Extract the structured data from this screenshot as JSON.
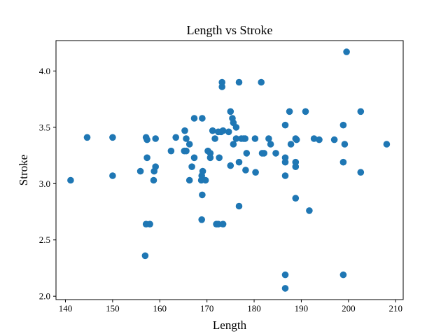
{
  "chart_data": {
    "type": "scatter",
    "title": "Length vs Stroke",
    "xlabel": "Length",
    "ylabel": "Stroke",
    "xlim": [
      138.0,
      211.6
    ],
    "ylim": [
      1.97,
      4.27
    ],
    "xticks": [
      140,
      150,
      160,
      170,
      180,
      190,
      200,
      210
    ],
    "yticks": [
      2.0,
      2.5,
      3.0,
      3.5,
      4.0
    ],
    "xtick_labels": [
      "140",
      "150",
      "160",
      "170",
      "180",
      "190",
      "200",
      "210"
    ],
    "ytick_labels": [
      "2.0",
      "2.5",
      "3.0",
      "3.5",
      "4.0"
    ],
    "grid": false,
    "marker_color": "#1f77b4",
    "series": [
      {
        "points": [
          [
            141.1,
            3.03
          ],
          [
            144.6,
            3.41
          ],
          [
            150.0,
            3.41
          ],
          [
            150.0,
            3.07
          ],
          [
            155.9,
            3.11
          ],
          [
            157.1,
            3.41
          ],
          [
            157.3,
            3.39
          ],
          [
            157.3,
            3.23
          ],
          [
            157.1,
            2.64
          ],
          [
            157.9,
            2.64
          ],
          [
            156.9,
            2.36
          ],
          [
            158.7,
            3.03
          ],
          [
            158.8,
            3.11
          ],
          [
            159.1,
            3.15
          ],
          [
            159.1,
            3.4
          ],
          [
            162.4,
            3.29
          ],
          [
            163.4,
            3.41
          ],
          [
            165.3,
            3.47
          ],
          [
            165.2,
            3.29
          ],
          [
            165.6,
            3.29
          ],
          [
            165.6,
            3.4
          ],
          [
            166.3,
            3.35
          ],
          [
            166.3,
            3.03
          ],
          [
            166.8,
            3.15
          ],
          [
            167.3,
            3.23
          ],
          [
            167.3,
            3.58
          ],
          [
            168.8,
            3.03
          ],
          [
            168.9,
            3.07
          ],
          [
            169.1,
            3.11
          ],
          [
            169.0,
            2.9
          ],
          [
            168.9,
            2.68
          ],
          [
            169.0,
            3.58
          ],
          [
            169.7,
            3.03
          ],
          [
            170.2,
            3.29
          ],
          [
            170.7,
            3.27
          ],
          [
            170.7,
            3.23
          ],
          [
            171.2,
            3.47
          ],
          [
            171.7,
            3.4
          ],
          [
            172.0,
            2.64
          ],
          [
            172.4,
            2.64
          ],
          [
            172.4,
            3.46
          ],
          [
            172.6,
            3.23
          ],
          [
            173.0,
            3.46
          ],
          [
            173.2,
            3.86
          ],
          [
            173.2,
            3.9
          ],
          [
            173.4,
            3.47
          ],
          [
            173.4,
            2.64
          ],
          [
            174.6,
            3.46
          ],
          [
            175.0,
            3.64
          ],
          [
            175.0,
            3.16
          ],
          [
            175.4,
            3.58
          ],
          [
            175.6,
            3.54
          ],
          [
            175.6,
            3.35
          ],
          [
            176.2,
            3.5
          ],
          [
            176.2,
            3.4
          ],
          [
            176.8,
            3.9
          ],
          [
            176.8,
            3.19
          ],
          [
            176.8,
            2.8
          ],
          [
            177.3,
            3.4
          ],
          [
            177.8,
            3.4
          ],
          [
            178.1,
            3.4
          ],
          [
            178.2,
            3.12
          ],
          [
            178.4,
            3.27
          ],
          [
            180.2,
            3.4
          ],
          [
            180.3,
            3.1
          ],
          [
            181.5,
            3.9
          ],
          [
            181.7,
            3.27
          ],
          [
            182.1,
            3.27
          ],
          [
            183.1,
            3.4
          ],
          [
            183.5,
            3.35
          ],
          [
            184.6,
            3.27
          ],
          [
            186.6,
            3.52
          ],
          [
            186.6,
            3.19
          ],
          [
            186.6,
            3.23
          ],
          [
            186.6,
            3.07
          ],
          [
            186.6,
            2.19
          ],
          [
            186.6,
            2.07
          ],
          [
            187.5,
            3.64
          ],
          [
            187.8,
            3.35
          ],
          [
            188.8,
            3.4
          ],
          [
            188.8,
            3.15
          ],
          [
            188.8,
            3.19
          ],
          [
            188.8,
            2.87
          ],
          [
            189.0,
            3.39
          ],
          [
            190.9,
            3.64
          ],
          [
            191.7,
            2.76
          ],
          [
            192.7,
            3.4
          ],
          [
            193.8,
            3.39
          ],
          [
            197.0,
            3.39
          ],
          [
            198.9,
            3.52
          ],
          [
            198.9,
            3.19
          ],
          [
            198.9,
            2.19
          ],
          [
            199.2,
            3.35
          ],
          [
            199.6,
            4.17
          ],
          [
            202.6,
            3.64
          ],
          [
            202.6,
            3.1
          ],
          [
            208.1,
            3.35
          ]
        ]
      }
    ]
  }
}
